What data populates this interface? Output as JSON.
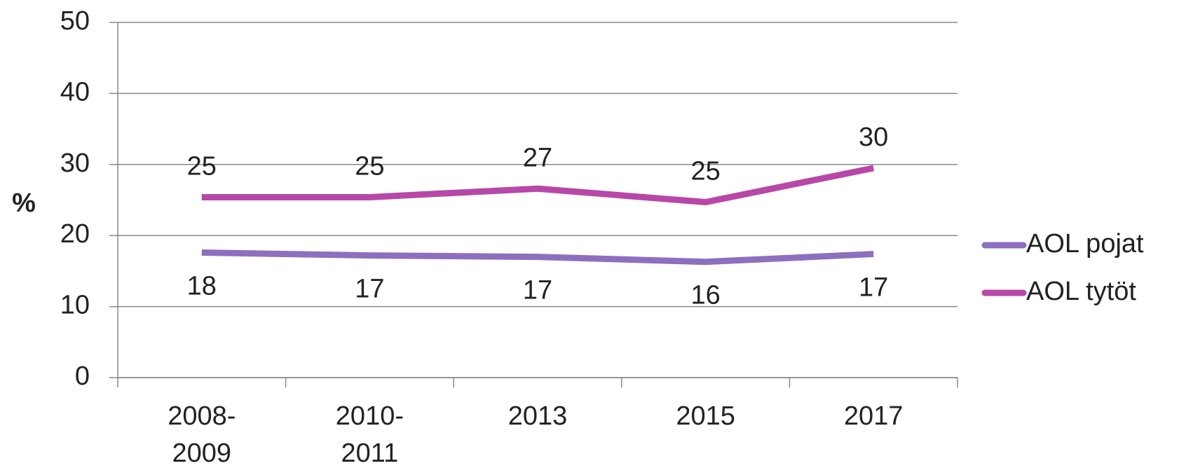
{
  "chart_data": {
    "type": "line",
    "y_label": "%",
    "categories": [
      "2008-2009",
      "2010-2011",
      "2013",
      "2015",
      "2017"
    ],
    "series": [
      {
        "name": "AOL pojat",
        "color": "#8e6fbe",
        "values": [
          17.6,
          17.2,
          17.0,
          16.3,
          17.4
        ],
        "value_labels": [
          "18",
          "17",
          "17",
          "16",
          "17"
        ]
      },
      {
        "name": "AOL tytöt",
        "color": "#b847a8",
        "values": [
          25.4,
          25.4,
          26.6,
          24.7,
          29.5
        ],
        "value_labels": [
          "25",
          "25",
          "27",
          "25",
          "30"
        ]
      }
    ],
    "ylim": [
      0,
      50
    ],
    "yticks": [
      0,
      10,
      20,
      30,
      40,
      50
    ],
    "grid": true,
    "legend": "right"
  }
}
